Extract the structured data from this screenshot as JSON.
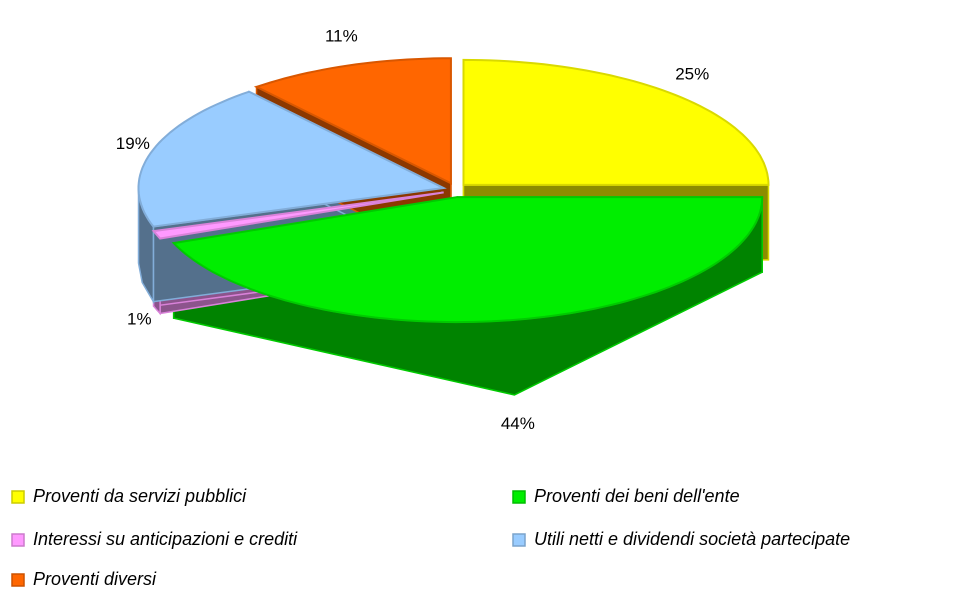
{
  "chart_data": {
    "type": "pie",
    "categories": [
      "Proventi da servizi pubblici",
      "Proventi dei beni dell'ente",
      "Interessi su anticipazioni e crediti",
      "Utili netti e dividendi società partecipate",
      "Proventi diversi"
    ],
    "values": [
      25,
      44,
      1,
      19,
      11
    ],
    "value_labels": [
      "25%",
      "44%",
      "1%",
      "19%",
      "11%"
    ],
    "colors": [
      "#ffff00",
      "#00ee00",
      "#ff99ff",
      "#99ccff",
      "#ff6600"
    ],
    "legend": "bottom"
  }
}
